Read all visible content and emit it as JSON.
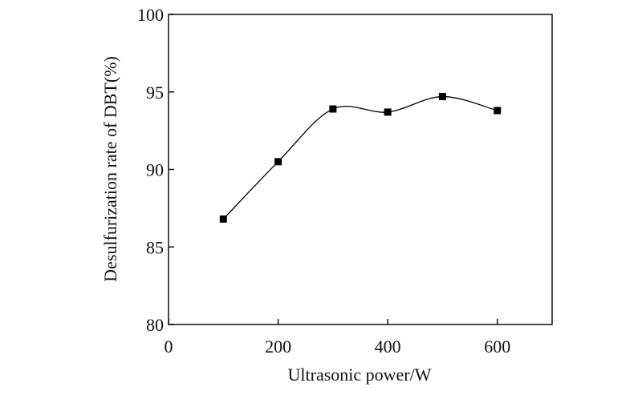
{
  "chart_data": {
    "type": "line",
    "smooth": true,
    "markers": true,
    "x_label": "Ultrasonic power/W",
    "y_label": "Desulfurization rate of DBT(%)",
    "x": [
      100,
      200,
      300,
      400,
      500,
      600
    ],
    "series": [
      {
        "color": "#000000",
        "values": [
          86.8,
          90.5,
          93.9,
          93.7,
          94.7,
          93.8
        ]
      }
    ],
    "xlim": [
      0,
      700
    ],
    "xticks": [
      0,
      200,
      400,
      600
    ],
    "ylim": [
      80,
      100
    ],
    "yticks": [
      80,
      85,
      90,
      95,
      100
    ]
  }
}
